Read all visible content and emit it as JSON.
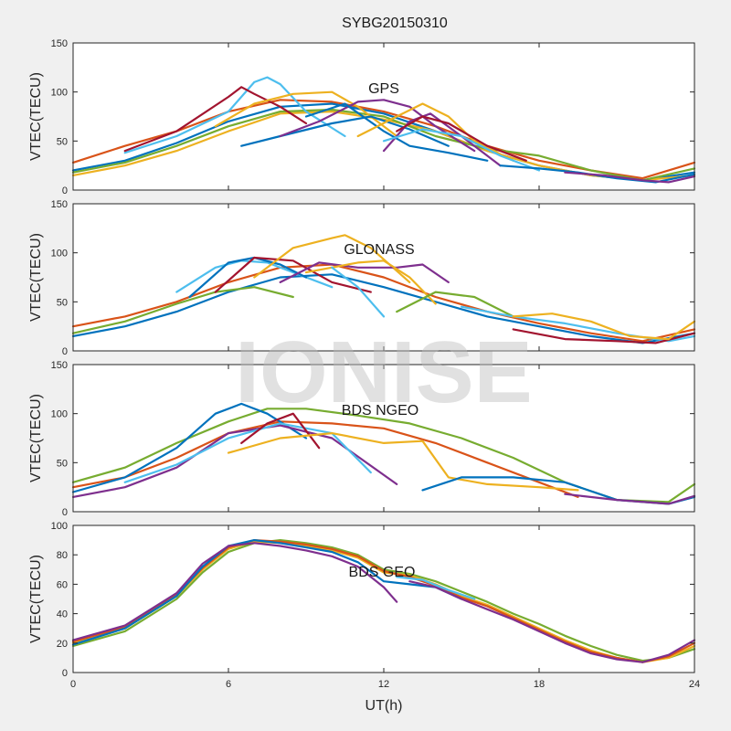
{
  "figure": {
    "title": "SYBG20150310",
    "xlabel": "UT(h)",
    "watermark": "IONISE"
  },
  "colors": [
    "#0072BD",
    "#D95319",
    "#EDB120",
    "#7E2F8E",
    "#77AC30",
    "#4DBEEE",
    "#A2142F"
  ],
  "chart_data": [
    {
      "type": "line",
      "annotation": "GPS",
      "xlabel": "",
      "ylabel": "VTEC(TECU)",
      "xlim": [
        0,
        24
      ],
      "ylim": [
        0,
        150
      ],
      "xticks": [
        0,
        6,
        12,
        18,
        24
      ],
      "yticks": [
        0,
        50,
        100,
        150
      ],
      "show_xticklabels": false,
      "series": [
        {
          "color": "#D95319",
          "x": [
            0,
            2,
            4,
            6,
            8,
            10,
            12,
            14,
            16,
            18,
            20,
            22,
            24
          ],
          "y": [
            28,
            45,
            60,
            80,
            92,
            90,
            80,
            65,
            45,
            30,
            20,
            12,
            28
          ]
        },
        {
          "color": "#0072BD",
          "x": [
            0,
            2,
            4,
            6,
            8,
            10,
            12,
            14,
            16,
            18,
            20,
            22,
            24
          ],
          "y": [
            20,
            30,
            48,
            70,
            85,
            88,
            78,
            60,
            40,
            25,
            15,
            10,
            18
          ]
        },
        {
          "color": "#EDB120",
          "x": [
            0,
            2,
            4,
            6,
            8,
            10,
            12,
            14,
            16,
            18,
            20,
            22,
            24
          ],
          "y": [
            15,
            25,
            40,
            60,
            78,
            80,
            72,
            60,
            40,
            25,
            15,
            10,
            15
          ]
        },
        {
          "color": "#77AC30",
          "x": [
            0,
            2,
            4,
            6,
            8,
            10,
            12,
            14,
            16,
            18,
            20,
            22,
            24
          ],
          "y": [
            18,
            28,
            45,
            65,
            80,
            82,
            75,
            55,
            42,
            35,
            20,
            10,
            22
          ]
        },
        {
          "color": "#4DBEEE",
          "x": [
            2,
            4,
            6,
            7,
            7.5,
            8,
            9,
            10.5
          ],
          "y": [
            38,
            55,
            80,
            110,
            115,
            108,
            80,
            55
          ]
        },
        {
          "color": "#A2142F",
          "x": [
            2,
            4,
            6,
            6.5,
            7,
            8,
            9
          ],
          "y": [
            40,
            60,
            95,
            105,
            98,
            85,
            68
          ]
        },
        {
          "color": "#EDB120",
          "x": [
            5.5,
            7,
            8.5,
            10,
            11,
            12.5
          ],
          "y": [
            65,
            88,
            98,
            100,
            85,
            55
          ]
        },
        {
          "color": "#0072BD",
          "x": [
            6.5,
            8,
            10,
            11.5,
            13,
            14.5
          ],
          "y": [
            45,
            55,
            68,
            75,
            62,
            45
          ]
        },
        {
          "color": "#7E2F8E",
          "x": [
            8,
            9.5,
            11,
            12,
            13,
            14,
            15.5
          ],
          "y": [
            55,
            70,
            90,
            92,
            85,
            65,
            40
          ]
        },
        {
          "color": "#0072BD",
          "x": [
            9,
            10.5,
            12,
            13,
            14.5,
            16
          ],
          "y": [
            75,
            88,
            60,
            45,
            38,
            30
          ]
        },
        {
          "color": "#EDB120",
          "x": [
            11,
            12.5,
            13.5,
            14.5,
            15.5,
            17
          ],
          "y": [
            55,
            75,
            88,
            75,
            50,
            30
          ]
        },
        {
          "color": "#7E2F8E",
          "x": [
            12,
            13,
            13.8,
            15,
            16.5
          ],
          "y": [
            40,
            70,
            78,
            55,
            25
          ]
        },
        {
          "color": "#A2142F",
          "x": [
            12.5,
            13.5,
            14.5,
            16,
            17.5
          ],
          "y": [
            60,
            75,
            68,
            45,
            30
          ]
        },
        {
          "color": "#4DBEEE",
          "x": [
            12,
            13.5,
            15,
            16.5,
            18
          ],
          "y": [
            50,
            62,
            55,
            35,
            20
          ]
        },
        {
          "color": "#0072BD",
          "x": [
            16.5,
            18,
            19.5,
            21,
            22.5,
            24
          ],
          "y": [
            25,
            22,
            18,
            12,
            8,
            16
          ]
        },
        {
          "color": "#7E2F8E",
          "x": [
            19,
            20.5,
            22,
            23,
            24
          ],
          "y": [
            18,
            15,
            10,
            8,
            14
          ]
        }
      ]
    },
    {
      "type": "line",
      "annotation": "GLONASS",
      "xlabel": "",
      "ylabel": "VTEC(TECU)",
      "xlim": [
        0,
        24
      ],
      "ylim": [
        0,
        150
      ],
      "xticks": [
        0,
        6,
        12,
        18,
        24
      ],
      "yticks": [
        0,
        50,
        100,
        150
      ],
      "show_xticklabels": false,
      "series": [
        {
          "color": "#D95319",
          "x": [
            0,
            2,
            4,
            6,
            8,
            10,
            12,
            14,
            16,
            18,
            20,
            22,
            24
          ],
          "y": [
            25,
            35,
            50,
            70,
            85,
            88,
            75,
            55,
            40,
            28,
            18,
            10,
            22
          ]
        },
        {
          "color": "#0072BD",
          "x": [
            0,
            2,
            4,
            6,
            8,
            10,
            12,
            14,
            16,
            18,
            20,
            22,
            24
          ],
          "y": [
            15,
            25,
            40,
            60,
            75,
            78,
            65,
            50,
            35,
            25,
            15,
            8,
            18
          ]
        },
        {
          "color": "#77AC30",
          "x": [
            0,
            2,
            4,
            5.5,
            7,
            8.5
          ],
          "y": [
            18,
            30,
            48,
            60,
            65,
            55
          ]
        },
        {
          "color": "#4DBEEE",
          "x": [
            4,
            5.5,
            6.5,
            7.5,
            8.5,
            10
          ],
          "y": [
            60,
            85,
            92,
            90,
            80,
            65
          ]
        },
        {
          "color": "#0072BD",
          "x": [
            4.5,
            6,
            7,
            8,
            9
          ],
          "y": [
            55,
            90,
            95,
            88,
            75
          ]
        },
        {
          "color": "#A2142F",
          "x": [
            5.5,
            7,
            8.5,
            10,
            11.5
          ],
          "y": [
            60,
            95,
            92,
            70,
            60
          ]
        },
        {
          "color": "#EDB120",
          "x": [
            7,
            8.5,
            10,
            10.5,
            11.5,
            13
          ],
          "y": [
            75,
            105,
            115,
            118,
            105,
            70
          ]
        },
        {
          "color": "#7E2F8E",
          "x": [
            8,
            9.5,
            11,
            12.5,
            13.5,
            14.5
          ],
          "y": [
            70,
            90,
            85,
            85,
            88,
            70
          ]
        },
        {
          "color": "#EDB120",
          "x": [
            9,
            11,
            12,
            13,
            14
          ],
          "y": [
            80,
            90,
            92,
            75,
            48
          ]
        },
        {
          "color": "#4DBEEE",
          "x": [
            10,
            11,
            12
          ],
          "y": [
            85,
            65,
            35
          ]
        },
        {
          "color": "#77AC30",
          "x": [
            12.5,
            14,
            15.5,
            17
          ],
          "y": [
            40,
            60,
            55,
            35
          ]
        },
        {
          "color": "#4DBEEE",
          "x": [
            15,
            17,
            19,
            21,
            23,
            24
          ],
          "y": [
            45,
            35,
            28,
            18,
            10,
            15
          ]
        },
        {
          "color": "#A2142F",
          "x": [
            17,
            19,
            21,
            22.5,
            24
          ],
          "y": [
            22,
            12,
            10,
            8,
            18
          ]
        },
        {
          "color": "#EDB120",
          "x": [
            17,
            18.5,
            20,
            21.5,
            23,
            24
          ],
          "y": [
            35,
            38,
            30,
            15,
            12,
            30
          ]
        }
      ]
    },
    {
      "type": "line",
      "annotation": "BDS NGEO",
      "xlabel": "",
      "ylabel": "VTEC(TECU)",
      "xlim": [
        0,
        24
      ],
      "ylim": [
        0,
        150
      ],
      "xticks": [
        0,
        6,
        12,
        18,
        24
      ],
      "yticks": [
        0,
        50,
        100,
        150
      ],
      "show_xticklabels": false,
      "series": [
        {
          "color": "#77AC30",
          "x": [
            0,
            2,
            4,
            6,
            7.5,
            9,
            11,
            13,
            15,
            17,
            19,
            21,
            23,
            24
          ],
          "y": [
            30,
            45,
            70,
            92,
            105,
            105,
            98,
            90,
            75,
            55,
            30,
            12,
            10,
            28
          ]
        },
        {
          "color": "#D95319",
          "x": [
            0,
            2,
            4,
            6,
            8,
            10,
            12,
            14,
            16,
            18,
            19.5
          ],
          "y": [
            25,
            35,
            55,
            80,
            92,
            90,
            85,
            70,
            50,
            30,
            15
          ]
        },
        {
          "color": "#0072BD",
          "x": [
            0,
            2,
            4,
            5.5,
            6.5,
            7.5,
            9
          ],
          "y": [
            20,
            35,
            65,
            100,
            110,
            100,
            75
          ]
        },
        {
          "color": "#7E2F8E",
          "x": [
            0,
            2,
            4,
            6,
            8,
            10,
            12.5
          ],
          "y": [
            15,
            25,
            45,
            80,
            88,
            75,
            28
          ]
        },
        {
          "color": "#4DBEEE",
          "x": [
            2,
            4,
            6,
            8,
            10,
            11.5
          ],
          "y": [
            30,
            48,
            75,
            90,
            80,
            40
          ]
        },
        {
          "color": "#A2142F",
          "x": [
            6.5,
            7.5,
            8.5,
            9.5
          ],
          "y": [
            70,
            90,
            100,
            65
          ]
        },
        {
          "color": "#EDB120",
          "x": [
            6,
            8,
            10,
            12,
            13.5,
            14.5,
            16,
            18,
            19.5
          ],
          "y": [
            60,
            75,
            80,
            70,
            72,
            35,
            28,
            25,
            22
          ]
        },
        {
          "color": "#0072BD",
          "x": [
            13.5,
            15,
            17,
            19,
            21,
            23,
            24
          ],
          "y": [
            22,
            35,
            35,
            30,
            12,
            8,
            15
          ]
        },
        {
          "color": "#7E2F8E",
          "x": [
            19,
            21,
            23,
            24
          ],
          "y": [
            18,
            12,
            8,
            16
          ]
        }
      ]
    },
    {
      "type": "line",
      "annotation": "BDS GEO",
      "xlabel": "UT(h)",
      "ylabel": "VTEC(TECU)",
      "xlim": [
        0,
        24
      ],
      "ylim": [
        0,
        100
      ],
      "xticks": [
        0,
        6,
        12,
        18,
        24
      ],
      "yticks": [
        0,
        20,
        40,
        60,
        80,
        100
      ],
      "show_xticklabels": true,
      "series": [
        {
          "color": "#77AC30",
          "x": [
            0,
            2,
            4,
            5,
            6,
            7,
            8,
            9,
            10,
            11,
            12,
            13,
            14,
            15,
            16,
            17,
            18,
            19,
            20,
            21,
            22,
            23,
            24
          ],
          "y": [
            18,
            28,
            50,
            68,
            82,
            88,
            90,
            88,
            85,
            80,
            70,
            67,
            62,
            55,
            48,
            40,
            33,
            25,
            18,
            12,
            8,
            10,
            16
          ]
        },
        {
          "color": "#EDB120",
          "x": [
            0,
            2,
            4,
            5,
            6,
            7,
            8,
            9,
            10,
            11,
            12,
            13,
            14,
            15,
            16,
            17,
            18,
            19,
            20,
            21,
            22,
            23,
            24
          ],
          "y": [
            20,
            30,
            52,
            70,
            84,
            89,
            88,
            86,
            83,
            78,
            68,
            66,
            60,
            52,
            46,
            38,
            30,
            22,
            15,
            10,
            7,
            10,
            18
          ]
        },
        {
          "color": "#D95319",
          "x": [
            0,
            2,
            4,
            5,
            6,
            7,
            8,
            9,
            10,
            11,
            12,
            13,
            14,
            15,
            16,
            17,
            18,
            19,
            20,
            21,
            22,
            23,
            24
          ],
          "y": [
            21,
            31,
            53,
            71,
            85,
            90,
            89,
            87,
            84,
            79,
            69,
            65,
            59,
            51,
            45,
            37,
            29,
            21,
            14,
            10,
            7,
            11,
            20
          ]
        },
        {
          "color": "#0072BD",
          "x": [
            0,
            2,
            4,
            5,
            6,
            7,
            8,
            9,
            10,
            11,
            12,
            13,
            14,
            15
          ],
          "y": [
            19,
            30,
            52,
            72,
            86,
            90,
            88,
            85,
            82,
            75,
            62,
            60,
            58,
            50
          ]
        },
        {
          "color": "#7E2F8E",
          "x": [
            0,
            2,
            4,
            5,
            6,
            7,
            8,
            9,
            10,
            11,
            12,
            12.5
          ],
          "y": [
            22,
            32,
            54,
            74,
            86,
            88,
            86,
            83,
            79,
            72,
            58,
            48
          ]
        },
        {
          "color": "#7E2F8E",
          "x": [
            13,
            14,
            15,
            16,
            17,
            18,
            19,
            20,
            21,
            22,
            23,
            24
          ],
          "y": [
            62,
            58,
            50,
            43,
            36,
            28,
            20,
            13,
            9,
            7,
            12,
            22
          ]
        },
        {
          "color": "#4DBEEE",
          "x": [
            12.5,
            13.5,
            14.5,
            15.5
          ],
          "y": [
            65,
            63,
            56,
            50
          ]
        }
      ]
    }
  ]
}
